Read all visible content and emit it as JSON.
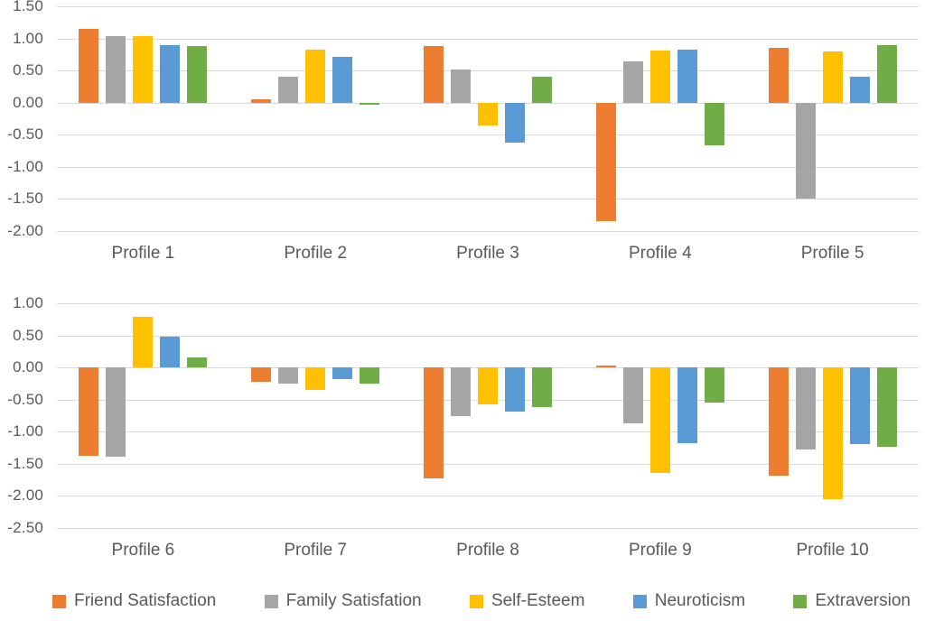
{
  "chart_data": [
    {
      "type": "bar",
      "title": "",
      "xlabel": "",
      "ylabel": "",
      "categories": [
        "Profile 1",
        "Profile 2",
        "Profile 3",
        "Profile 4",
        "Profile 5"
      ],
      "ylim": [
        -2.0,
        1.5
      ],
      "yticks": [
        "1.50",
        "1.00",
        "0.50",
        "0.00",
        "-0.50",
        "-1.00",
        "-1.50",
        "-2.00"
      ],
      "grid": "horizontal",
      "series": [
        {
          "name": "Friend Satisfaction",
          "color": "#ED7D31",
          "values": [
            1.15,
            0.05,
            0.88,
            -1.85,
            0.85
          ]
        },
        {
          "name": "Family Satisfation",
          "color": "#A5A5A5",
          "values": [
            1.04,
            0.4,
            0.51,
            0.64,
            -1.5
          ]
        },
        {
          "name": "Self-Esteem",
          "color": "#FFC000",
          "values": [
            1.03,
            0.82,
            -0.36,
            0.81,
            0.8
          ]
        },
        {
          "name": "Neuroticism",
          "color": "#5B9BD5",
          "values": [
            0.89,
            0.72,
            -0.62,
            0.83,
            0.41
          ]
        },
        {
          "name": "Extraversion",
          "color": "#70AD47",
          "values": [
            0.88,
            -0.03,
            0.4,
            -0.67,
            0.9
          ]
        }
      ]
    },
    {
      "type": "bar",
      "title": "",
      "xlabel": "",
      "ylabel": "",
      "categories": [
        "Profile 6",
        "Profile 7",
        "Profile 8",
        "Profile 9",
        "Profile 10"
      ],
      "ylim": [
        -2.5,
        1.0
      ],
      "yticks": [
        "1.00",
        "0.50",
        "0.00",
        "-0.50",
        "-1.00",
        "-1.50",
        "-2.00",
        "-2.50"
      ],
      "grid": "horizontal",
      "series": [
        {
          "name": "Friend Satisfaction",
          "color": "#ED7D31",
          "values": [
            -1.38,
            -0.22,
            -1.72,
            0.03,
            -1.68
          ]
        },
        {
          "name": "Family Satisfation",
          "color": "#A5A5A5",
          "values": [
            -1.39,
            -0.25,
            -0.75,
            -0.87,
            -1.28
          ]
        },
        {
          "name": "Self-Esteem",
          "color": "#FFC000",
          "values": [
            0.79,
            -0.35,
            -0.58,
            -1.64,
            -2.05
          ]
        },
        {
          "name": "Neuroticism",
          "color": "#5B9BD5",
          "values": [
            0.48,
            -0.18,
            -0.68,
            -1.18,
            -1.19
          ]
        },
        {
          "name": "Extraversion",
          "color": "#70AD47",
          "values": [
            0.15,
            -0.25,
            -0.62,
            -0.54,
            -1.23
          ]
        }
      ]
    }
  ],
  "legend": {
    "position": "bottom",
    "items": [
      {
        "label": "Friend Satisfaction",
        "color": "#ED7D31"
      },
      {
        "label": "Family Satisfation",
        "color": "#A5A5A5"
      },
      {
        "label": "Self-Esteem",
        "color": "#FFC000"
      },
      {
        "label": "Neuroticism",
        "color": "#5B9BD5"
      },
      {
        "label": "Extraversion",
        "color": "#70AD47"
      }
    ]
  },
  "colors": {
    "gridline": "#D9D9D9",
    "text": "#595959",
    "background": "#FFFFFF"
  }
}
